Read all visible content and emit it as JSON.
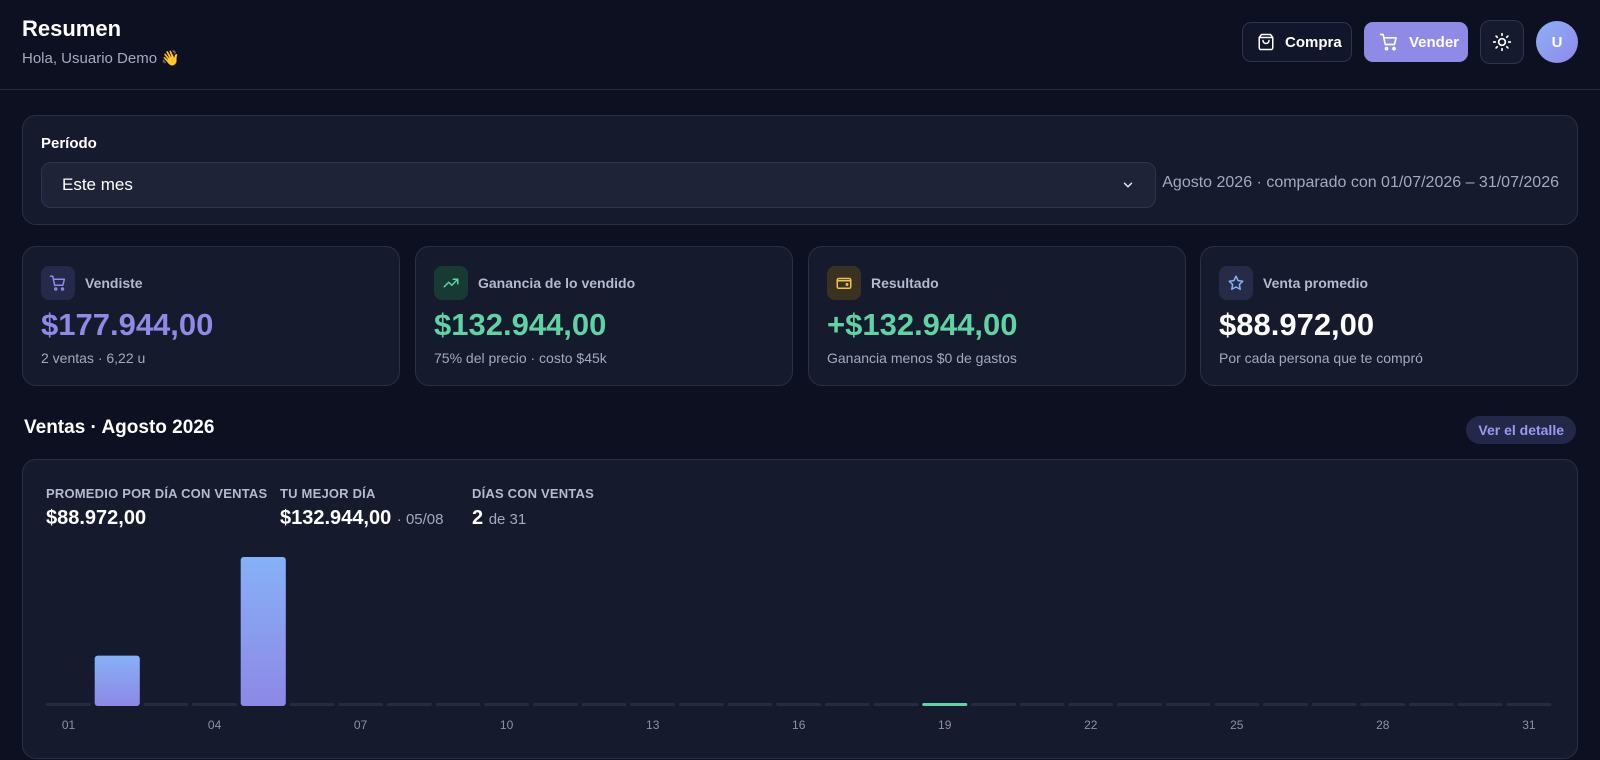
{
  "header": {
    "title": "Resumen",
    "greeting": "Hola, Usuario Demo 👋",
    "buy_label": "Compra",
    "sell_label": "Vender",
    "avatar_initial": "U"
  },
  "period": {
    "label": "Período",
    "selected": "Este mes",
    "range_text": "Agosto 2026 · comparado con 01/07/2026 – 31/07/2026"
  },
  "stats": [
    {
      "icon": "cart-icon",
      "label": "Vendiste",
      "value": "$177.944,00",
      "sub": "2 ventas · 6,22 u",
      "color": "#8e8ae6",
      "icon_bg": "#262a4a"
    },
    {
      "icon": "trending-up-icon",
      "label": "Ganancia de lo vendido",
      "value": "$132.944,00",
      "sub": "75% del precio · costo $45k",
      "color": "#5fd3a4",
      "icon_bg": "#173a33"
    },
    {
      "icon": "wallet-icon",
      "label": "Resultado",
      "value": "+$132.944,00",
      "sub": "Ganancia menos $0 de gastos",
      "color": "#5fd3a4",
      "icon_bg": "#3a3220"
    },
    {
      "icon": "star-icon",
      "label": "Venta promedio",
      "value": "$88.972,00",
      "sub": "Por cada persona que te compró",
      "color": "#ffffff",
      "icon_bg": "#262c48"
    }
  ],
  "sales_section": {
    "title": "Ventas · Agosto 2026",
    "detail_label": "Ver el detalle",
    "kpis": {
      "avg_label": "PROMEDIO POR DÍA CON VENTAS",
      "avg_value": "$88.972,00",
      "best_label": "TU MEJOR DÍA",
      "best_value": "$132.944,00",
      "best_date": "· 05/08",
      "days_label": "DÍAS CON VENTAS",
      "days_value": "2",
      "days_total": "de 31"
    }
  },
  "chart_data": {
    "type": "bar",
    "categories": [
      "01",
      "02",
      "03",
      "04",
      "05",
      "06",
      "07",
      "08",
      "09",
      "10",
      "11",
      "12",
      "13",
      "14",
      "15",
      "16",
      "17",
      "18",
      "19",
      "20",
      "21",
      "22",
      "23",
      "24",
      "25",
      "26",
      "27",
      "28",
      "29",
      "30",
      "31"
    ],
    "values": [
      0,
      45000,
      0,
      0,
      132944,
      0,
      0,
      0,
      0,
      0,
      0,
      0,
      0,
      0,
      0,
      0,
      0,
      0,
      0,
      0,
      0,
      0,
      0,
      0,
      0,
      0,
      0,
      0,
      0,
      0,
      0
    ],
    "tick_labels": [
      "01",
      "04",
      "07",
      "10",
      "13",
      "16",
      "19",
      "22",
      "25",
      "28",
      "31"
    ],
    "highlight_day": "19",
    "ylim": [
      0,
      132944
    ],
    "colors": {
      "bar_top": "#86b1f7",
      "bar_bottom": "#8d88e6",
      "empty": "#262b40",
      "today": "#5fd3a4",
      "tick": "#8b91a8"
    }
  }
}
